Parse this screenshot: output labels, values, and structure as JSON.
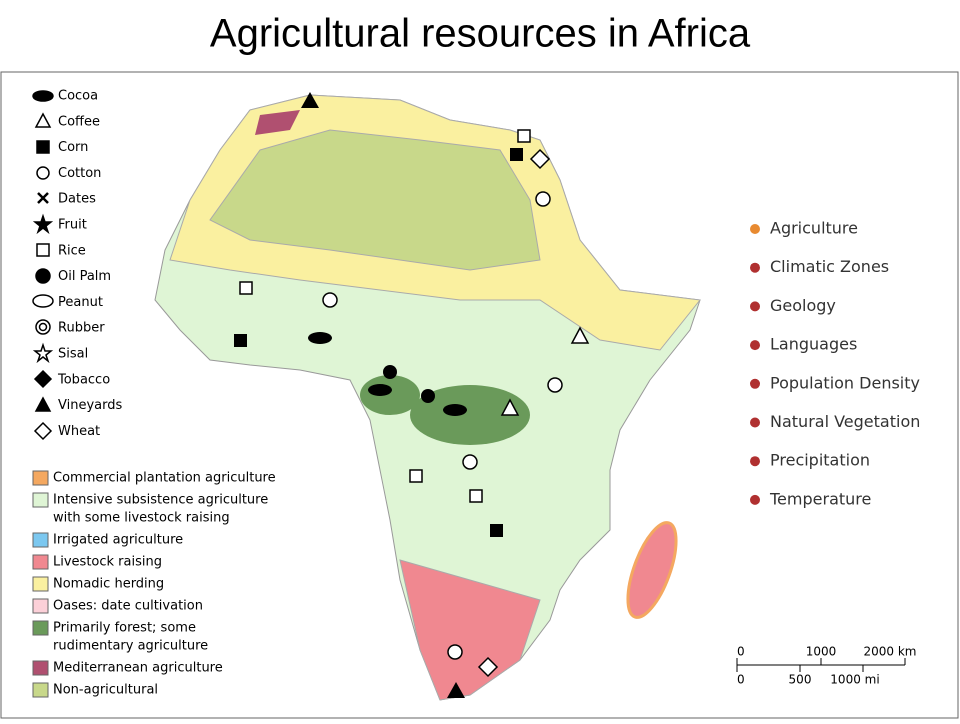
{
  "title": "Agricultural resources in Africa",
  "symbol_legend": [
    "Cocoa",
    "Coffee",
    "Corn",
    "Cotton",
    "Dates",
    "Fruit",
    "Rice",
    "Oil Palm",
    "Peanut",
    "Rubber",
    "Sisal",
    "Tobacco",
    "Vineyards",
    "Wheat"
  ],
  "land_use_legend": [
    {
      "lines": [
        "Commercial plantation agriculture"
      ],
      "color": "#f4a860"
    },
    {
      "lines": [
        "Intensive subsistence agriculture",
        "with some livestock raising"
      ],
      "color": "#dff5d5"
    },
    {
      "lines": [
        "Irrigated agriculture"
      ],
      "color": "#7cc8f0"
    },
    {
      "lines": [
        "Livestock raising"
      ],
      "color": "#f08890"
    },
    {
      "lines": [
        "Nomadic herding"
      ],
      "color": "#faf0a0"
    },
    {
      "lines": [
        "Oases: date cultivation"
      ],
      "color": "#fcd0d8"
    },
    {
      "lines": [
        "Primarily forest; some",
        "rudimentary agriculture"
      ],
      "color": "#6a9a5a"
    },
    {
      "lines": [
        "Mediterranean agriculture"
      ],
      "color": "#b05070"
    },
    {
      "lines": [
        "Non-agricultural"
      ],
      "color": "#c8d88a"
    }
  ],
  "topics": [
    "Agriculture",
    "Climatic Zones",
    "Geology",
    "Languages",
    "Population Density",
    "Natural Vegetation",
    "Precipitation",
    "Temperature"
  ],
  "scale": {
    "km": [
      "0",
      "1000",
      "2000 km"
    ],
    "mi": [
      "0",
      "500",
      "1000 mi"
    ]
  }
}
